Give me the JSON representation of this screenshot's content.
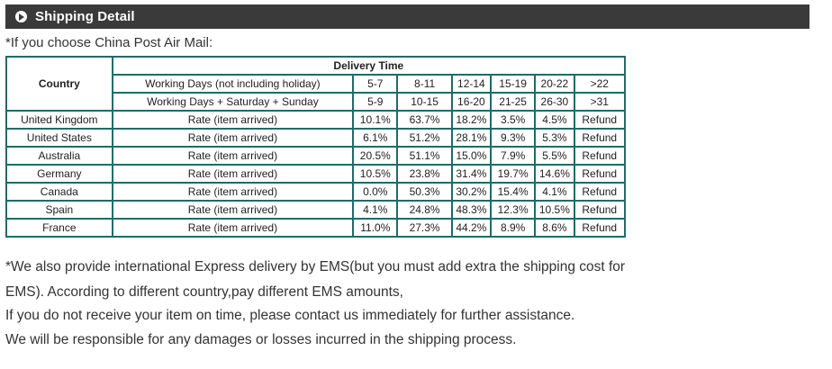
{
  "header": {
    "title": "Shipping Detail",
    "icon": "circle-arrow-right-icon"
  },
  "intro": "*If you choose China Post Air Mail:",
  "table": {
    "country_header": "Country",
    "delivery_time_header": "Delivery Time",
    "working_days_1": {
      "label": "Working Days (not including holiday)",
      "ranges": [
        "5-7",
        "8-11",
        "12-14",
        "15-19",
        "20-22",
        ">22"
      ]
    },
    "working_days_2": {
      "label": "Working Days + Saturday + Sunday",
      "ranges": [
        "5-9",
        "10-15",
        "16-20",
        "21-25",
        "26-30",
        ">31"
      ]
    },
    "rows": [
      {
        "country": "United Kingdom",
        "label": "Rate (item arrived)",
        "rates": [
          "10.1%",
          "63.7%",
          "18.2%",
          "3.5%",
          "4.5%",
          "Refund"
        ]
      },
      {
        "country": "United States",
        "label": "Rate (item arrived)",
        "rates": [
          "6.1%",
          "51.2%",
          "28.1%",
          "9.3%",
          "5.3%",
          "Refund"
        ]
      },
      {
        "country": "Australia",
        "label": "Rate (item arrived)",
        "rates": [
          "20.5%",
          "51.1%",
          "15.0%",
          "7.9%",
          "5.5%",
          "Refund"
        ]
      },
      {
        "country": "Germany",
        "label": "Rate (item arrived)",
        "rates": [
          "10.5%",
          "23.8%",
          "31.4%",
          "19.7%",
          "14.6%",
          "Refund"
        ]
      },
      {
        "country": "Canada",
        "label": "Rate (item arrived)",
        "rates": [
          "0.0%",
          "50.3%",
          "30.2%",
          "15.4%",
          "4.1%",
          "Refund"
        ]
      },
      {
        "country": "Spain",
        "label": "Rate (item arrived)",
        "rates": [
          "4.1%",
          "24.8%",
          "48.3%",
          "12.3%",
          "10.5%",
          "Refund"
        ]
      },
      {
        "country": "France",
        "label": "Rate (item arrived)",
        "rates": [
          "11.0%",
          "27.3%",
          "44.2%",
          "8.9%",
          "8.6%",
          "Refund"
        ]
      }
    ]
  },
  "notes": [
    "*We also provide international Express delivery by EMS(but you must add extra the shipping cost for",
    "EMS). According to different country,pay different EMS amounts,",
    "If you do not receive your item on time, please contact us immediately for further assistance.",
    "We will be responsible for any damages or losses incurred in the shipping process."
  ],
  "colors": {
    "header_bg": "#3a3a3a",
    "table_border": "#1e6b6b"
  }
}
